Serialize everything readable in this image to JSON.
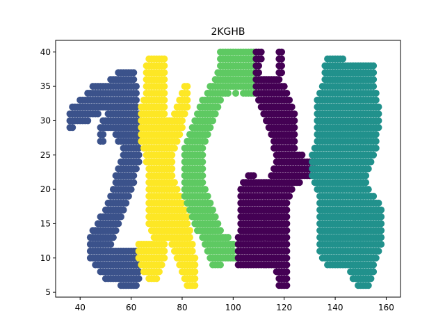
{
  "chart_data": {
    "type": "scatter",
    "title": "2KGHB",
    "xlabel": "",
    "ylabel": "",
    "xlim": [
      30.4,
      165.6
    ],
    "ylim": [
      4.3,
      41.7
    ],
    "xticks": [
      "40",
      "60",
      "80",
      "100",
      "120",
      "140",
      "160"
    ],
    "yticks": [
      "5",
      "10",
      "15",
      "20",
      "25",
      "30",
      "35",
      "40"
    ],
    "grid": false,
    "legend": "none",
    "series": [
      {
        "color": "#3b528b",
        "rows": [
          [
            37,
            55,
            61
          ],
          [
            36,
            52,
            61
          ],
          [
            35,
            45,
            62
          ],
          [
            34,
            43,
            62
          ],
          [
            33,
            40,
            62
          ],
          [
            32,
            37,
            62
          ],
          [
            31,
            36,
            47
          ],
          [
            31,
            51,
            63
          ],
          [
            30,
            36,
            43
          ],
          [
            30,
            49,
            63
          ],
          [
            29,
            36,
            37
          ],
          [
            29,
            48,
            63
          ],
          [
            28,
            48,
            49
          ],
          [
            28,
            54,
            63
          ],
          [
            27,
            48,
            49
          ],
          [
            27,
            55,
            63
          ],
          [
            26,
            57,
            63
          ],
          [
            25,
            57,
            63
          ],
          [
            24,
            56,
            63
          ],
          [
            23,
            55,
            62
          ],
          [
            22,
            54,
            61
          ],
          [
            21,
            54,
            61
          ],
          [
            20,
            53,
            60
          ],
          [
            19,
            52,
            59
          ],
          [
            18,
            51,
            58
          ],
          [
            17,
            50,
            57
          ],
          [
            16,
            48,
            56
          ],
          [
            15,
            47,
            55
          ],
          [
            14,
            45,
            54
          ],
          [
            13,
            44,
            53
          ],
          [
            12,
            44,
            52
          ],
          [
            11,
            44,
            52
          ],
          [
            11,
            53,
            62
          ],
          [
            10,
            44,
            63
          ],
          [
            9,
            46,
            63
          ],
          [
            8,
            48,
            63
          ],
          [
            7,
            50,
            63
          ],
          [
            6,
            56,
            62
          ]
        ]
      },
      {
        "color": "#fde725",
        "rows": [
          [
            39,
            67,
            73
          ],
          [
            38,
            66,
            73
          ],
          [
            37,
            66,
            73
          ],
          [
            36,
            66,
            73
          ],
          [
            35,
            66,
            73
          ],
          [
            35,
            81,
            82
          ],
          [
            34,
            66,
            73
          ],
          [
            34,
            80,
            82
          ],
          [
            33,
            65,
            73
          ],
          [
            33,
            79,
            82
          ],
          [
            32,
            64,
            73
          ],
          [
            32,
            78,
            82
          ],
          [
            31,
            64,
            73
          ],
          [
            31,
            77,
            81
          ],
          [
            30,
            64,
            80
          ],
          [
            29,
            64,
            80
          ],
          [
            28,
            64,
            79
          ],
          [
            27,
            64,
            78
          ],
          [
            26,
            65,
            77
          ],
          [
            25,
            66,
            76
          ],
          [
            24,
            66,
            76
          ],
          [
            23,
            67,
            76
          ],
          [
            22,
            67,
            76
          ],
          [
            21,
            67,
            77
          ],
          [
            20,
            67,
            78
          ],
          [
            19,
            67,
            79
          ],
          [
            18,
            67,
            80
          ],
          [
            17,
            67,
            81
          ],
          [
            16,
            67,
            82
          ],
          [
            15,
            67,
            82
          ],
          [
            14,
            68,
            83
          ],
          [
            13,
            69,
            83
          ],
          [
            12,
            63,
            73
          ],
          [
            12,
            76,
            84
          ],
          [
            11,
            63,
            73
          ],
          [
            11,
            77,
            84
          ],
          [
            10,
            63,
            73
          ],
          [
            10,
            78,
            85
          ],
          [
            9,
            64,
            72
          ],
          [
            9,
            79,
            85
          ],
          [
            8,
            65,
            71
          ],
          [
            8,
            80,
            85
          ],
          [
            7,
            67,
            70
          ],
          [
            7,
            81,
            85
          ],
          [
            6,
            82,
            85
          ]
        ]
      },
      {
        "color": "#5ec962",
        "rows": [
          [
            40,
            95,
            108
          ],
          [
            39,
            95,
            108
          ],
          [
            38,
            95,
            108
          ],
          [
            37,
            94,
            108
          ],
          [
            36,
            93,
            108
          ],
          [
            35,
            91,
            108
          ],
          [
            34,
            90,
            98
          ],
          [
            34,
            101,
            101
          ],
          [
            34,
            104,
            108
          ],
          [
            33,
            88,
            95
          ],
          [
            32,
            87,
            94
          ],
          [
            31,
            86,
            93
          ],
          [
            30,
            85,
            92
          ],
          [
            29,
            84,
            91
          ],
          [
            28,
            83,
            90
          ],
          [
            27,
            82,
            89
          ],
          [
            26,
            81,
            88
          ],
          [
            25,
            81,
            88
          ],
          [
            24,
            81,
            88
          ],
          [
            23,
            81,
            88
          ],
          [
            22,
            81,
            88
          ],
          [
            21,
            81,
            88
          ],
          [
            20,
            81,
            89
          ],
          [
            19,
            81,
            90
          ],
          [
            18,
            82,
            91
          ],
          [
            17,
            83,
            92
          ],
          [
            16,
            84,
            93
          ],
          [
            15,
            85,
            94
          ],
          [
            14,
            86,
            95
          ],
          [
            13,
            88,
            98
          ],
          [
            12,
            89,
            100
          ],
          [
            11,
            90,
            100
          ],
          [
            10,
            91,
            101
          ],
          [
            9,
            92,
            95
          ]
        ]
      },
      {
        "color": "#440154",
        "rows": [
          [
            40,
            109,
            111
          ],
          [
            40,
            118,
            119
          ],
          [
            39,
            109,
            111
          ],
          [
            39,
            118,
            119
          ],
          [
            38,
            109,
            110
          ],
          [
            38,
            118,
            119
          ],
          [
            37,
            109,
            110
          ],
          [
            37,
            118,
            119
          ],
          [
            36,
            109,
            118
          ],
          [
            35,
            109,
            120
          ],
          [
            34,
            109,
            121
          ],
          [
            33,
            110,
            122
          ],
          [
            32,
            111,
            123
          ],
          [
            31,
            112,
            124
          ],
          [
            30,
            113,
            124
          ],
          [
            29,
            114,
            124
          ],
          [
            28,
            115,
            124
          ],
          [
            27,
            116,
            124
          ],
          [
            26,
            116,
            124
          ],
          [
            25,
            117,
            127
          ],
          [
            24,
            117,
            132
          ],
          [
            23,
            116,
            132
          ],
          [
            22,
            115,
            130
          ],
          [
            22,
            106,
            108
          ],
          [
            21,
            104,
            126
          ],
          [
            20,
            103,
            123
          ],
          [
            19,
            103,
            122
          ],
          [
            18,
            103,
            121
          ],
          [
            17,
            103,
            121
          ],
          [
            16,
            103,
            121
          ],
          [
            15,
            103,
            121
          ],
          [
            14,
            103,
            121
          ],
          [
            13,
            102,
            121
          ],
          [
            12,
            102,
            121
          ],
          [
            11,
            102,
            121
          ],
          [
            10,
            102,
            121
          ],
          [
            9,
            102,
            121
          ],
          [
            8,
            117,
            121
          ],
          [
            7,
            118,
            121
          ],
          [
            6,
            118,
            121
          ]
        ]
      },
      {
        "color": "#21918c",
        "rows": [
          [
            39,
            137,
            143
          ],
          [
            38,
            136,
            155
          ],
          [
            37,
            136,
            155
          ],
          [
            36,
            136,
            155
          ],
          [
            35,
            135,
            155
          ],
          [
            34,
            134,
            156
          ],
          [
            33,
            133,
            156
          ],
          [
            32,
            133,
            157
          ],
          [
            31,
            133,
            157
          ],
          [
            30,
            133,
            157
          ],
          [
            29,
            133,
            157
          ],
          [
            28,
            133,
            156
          ],
          [
            27,
            133,
            156
          ],
          [
            26,
            132,
            156
          ],
          [
            25,
            131,
            155
          ],
          [
            24,
            131,
            154
          ],
          [
            23,
            131,
            153
          ],
          [
            22,
            131,
            152
          ],
          [
            21,
            132,
            152
          ],
          [
            20,
            133,
            153
          ],
          [
            19,
            134,
            155
          ],
          [
            18,
            134,
            157
          ],
          [
            17,
            134,
            158
          ],
          [
            16,
            134,
            158
          ],
          [
            15,
            134,
            158
          ],
          [
            14,
            134,
            158
          ],
          [
            13,
            134,
            158
          ],
          [
            12,
            134,
            158
          ],
          [
            11,
            134,
            157
          ],
          [
            10,
            135,
            156
          ],
          [
            9,
            137,
            155
          ],
          [
            8,
            146,
            155
          ],
          [
            7,
            147,
            154
          ],
          [
            6,
            149,
            153
          ]
        ]
      }
    ]
  }
}
